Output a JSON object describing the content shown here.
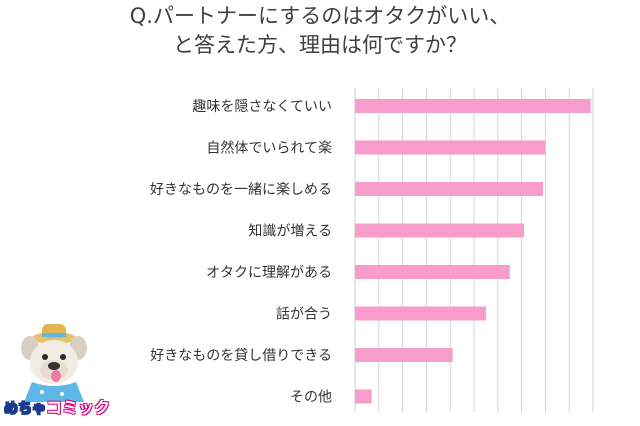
{
  "chart_data": {
    "type": "bar",
    "orientation": "horizontal",
    "title_lines": [
      "Q.パートナーにするのはオタクがいい、",
      "と答えた方、理由は何ですか？"
    ],
    "categories": [
      "趣味を隠さなくていい",
      "自然体でいられて楽",
      "好きなものを一緒に楽しめる",
      "知識が増える",
      "オタクに理解がある",
      "話が合う",
      "好きなものを貸し借りできる",
      "その他"
    ],
    "values": [
      99,
      80,
      79,
      71,
      65,
      55,
      41,
      7
    ],
    "xlim": [
      0,
      100
    ],
    "grid": true,
    "bar_color": "#f79ccb",
    "grid_color": "#cccccc"
  },
  "logo": {
    "text_a": "めちゃ",
    "text_b": "コミック",
    "colors": {
      "blue": "#1b3a8c",
      "pink": "#d9007e",
      "hat": "#e8c26a",
      "shirt": "#5fb7e5"
    }
  }
}
